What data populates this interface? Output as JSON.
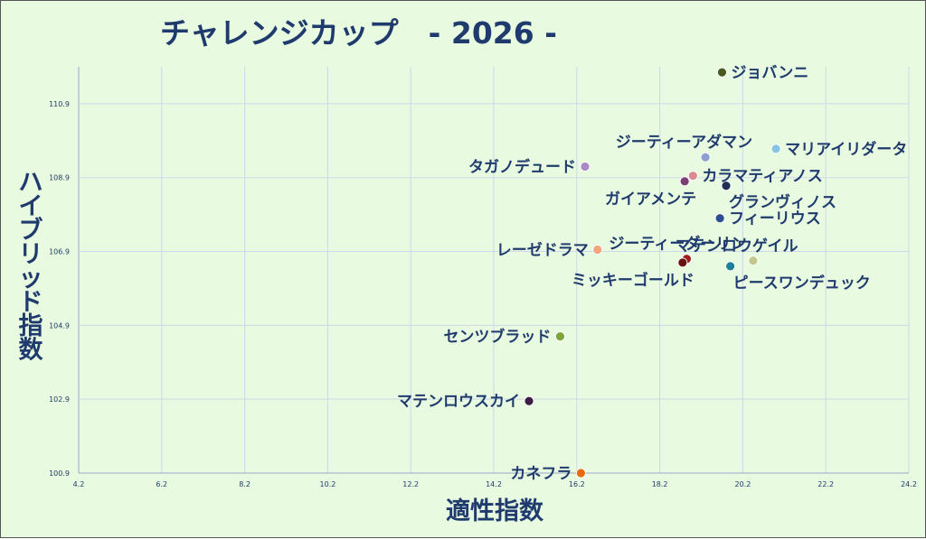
{
  "chart_data": {
    "type": "scatter",
    "title": "チャレンジカップ　- 2026 -",
    "xlabel": "適性指数",
    "ylabel": "ハイブリッド指数",
    "xlim": [
      4.2,
      24.2
    ],
    "ylim": [
      100.9,
      111.9
    ],
    "xticks": [
      "4.2",
      "6.2",
      "8.2",
      "10.2",
      "12.2",
      "14.2",
      "16.2",
      "18.2",
      "20.2",
      "22.2",
      "24.2"
    ],
    "yticks": [
      "100.9",
      "102.9",
      "104.9",
      "106.9",
      "108.9",
      "110.9"
    ],
    "grid": true,
    "points": [
      {
        "name": "ジョバンニ",
        "x": 19.7,
        "y": 111.75,
        "color": "#4a5a1e",
        "label_pos": "right"
      },
      {
        "name": "マリアイリダータ",
        "x": 21.0,
        "y": 109.68,
        "color": "#86c5e4",
        "label_pos": "right"
      },
      {
        "name": "ジーティーアダマン",
        "x": 19.3,
        "y": 109.45,
        "color": "#8fa0cf",
        "label_pos": "above-left"
      },
      {
        "name": "タガノデュード",
        "x": 16.4,
        "y": 109.2,
        "color": "#a98ac2",
        "label_pos": "left"
      },
      {
        "name": "カラマティアノス",
        "x": 19.0,
        "y": 108.95,
        "color": "#d98a93",
        "label_pos": "right"
      },
      {
        "name": "ガイアメンテ",
        "x": 18.8,
        "y": 108.8,
        "color": "#7b3f73",
        "label_pos": "below-left"
      },
      {
        "name": "グランヴィノス",
        "x": 19.8,
        "y": 108.68,
        "color": "#1e2f55",
        "label_pos": "below-right"
      },
      {
        "name": "フィーリウス",
        "x": 19.65,
        "y": 107.8,
        "color": "#2e4f8f",
        "label_pos": "right"
      },
      {
        "name": "レーゼドラマ",
        "x": 16.7,
        "y": 106.95,
        "color": "#f2a57a",
        "label_pos": "left"
      },
      {
        "name": "ジーティーダーリン",
        "x": 18.85,
        "y": 106.7,
        "color": "#a01c1c",
        "label_pos": "above-right"
      },
      {
        "name": "ミッキーゴールド",
        "x": 18.75,
        "y": 106.6,
        "color": "#6b1010",
        "label_pos": "below-left"
      },
      {
        "name": "マテンロウゲイル",
        "x": 20.45,
        "y": 106.65,
        "color": "#c3c78c",
        "label_pos": "above-right"
      },
      {
        "name": "ピースワンデュック",
        "x": 19.9,
        "y": 106.5,
        "color": "#1f7f99",
        "label_pos": "below-right"
      },
      {
        "name": "センツブラッド",
        "x": 15.8,
        "y": 104.6,
        "color": "#7ea63c",
        "label_pos": "left"
      },
      {
        "name": "マテンロウスカイ",
        "x": 15.05,
        "y": 102.85,
        "color": "#3b1e46",
        "label_pos": "left"
      },
      {
        "name": "カネフラ",
        "x": 16.3,
        "y": 100.9,
        "color": "#e86a10",
        "label_pos": "left"
      }
    ]
  }
}
